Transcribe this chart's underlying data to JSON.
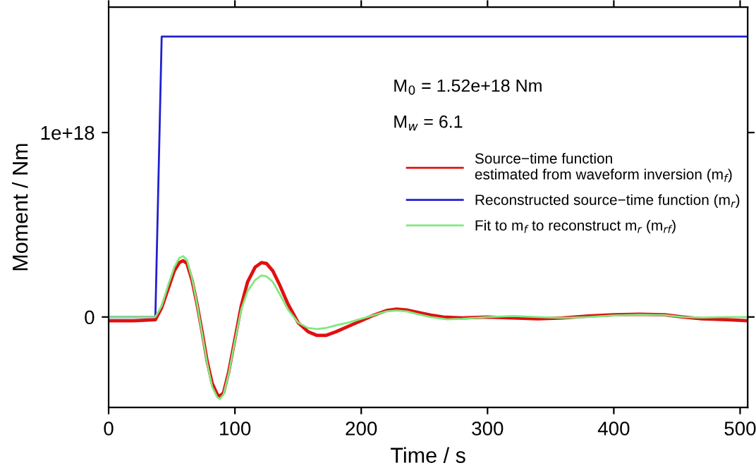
{
  "chart_data": {
    "type": "line",
    "xlabel": "Time / s",
    "ylabel": "Moment / Nm",
    "xlim": [
      0,
      506
    ],
    "ylim": [
      -4.9e+17,
      1.68e+18
    ],
    "xticks": [
      0,
      100,
      200,
      300,
      400,
      500
    ],
    "yticks": [
      0,
      {
        "value": 1e+18,
        "label": "1e+18"
      }
    ],
    "grid": false,
    "legend": "right",
    "marker": "none",
    "line_style": "solid",
    "annotations": [
      "M$_{0}$ = 1.52e+18 Nm",
      "M$_{w}$ = 6.1"
    ],
    "series": [
      {
        "name": "Source−time function\nestimated from waveform inversion (m$_{f}$)",
        "color": "#e01010",
        "x": [
          0,
          20,
          37,
          42,
          47,
          52,
          56,
          59,
          62,
          66,
          70,
          74,
          78,
          82,
          86,
          88,
          91,
          95,
          100,
          105,
          110,
          116,
          121,
          125,
          130,
          135,
          142,
          150,
          158,
          165,
          172,
          180,
          190,
          200,
          210,
          220,
          228,
          236,
          245,
          255,
          265,
          280,
          300,
          320,
          340,
          360,
          380,
          400,
          420,
          440,
          455,
          470,
          490,
          506
        ],
        "values": [
          -2e+16,
          -2e+16,
          -1.5e+16,
          5e+16,
          1.5e+17,
          2.5e+17,
          2.95e+17,
          3.05e+17,
          2.9e+17,
          2e+17,
          7e+16,
          -8e+16,
          -2.4e+17,
          -3.6e+17,
          -4.2e+17,
          -4.3e+17,
          -4.1e+17,
          -3e+17,
          -1.2e+17,
          6e+16,
          1.9e+17,
          2.7e+17,
          2.95e+17,
          2.9e+17,
          2.5e+17,
          1.8e+17,
          7e+16,
          -3e+16,
          -8e+16,
          -1e+17,
          -1e+17,
          -8e+16,
          -5e+16,
          -2e+16,
          1e+16,
          3.5e+16,
          4.3e+16,
          3.8e+16,
          2.5e+16,
          1e+16,
          0,
          -5000000000000000.0,
          0,
          -5000000000000000.0,
          -1e+16,
          -5000000000000000.0,
          5000000000000000.0,
          1.2e+16,
          1.5e+16,
          1.2e+16,
          0,
          -1e+16,
          -1.5e+16,
          -2e+16
        ]
      },
      {
        "name": "Reconstructed source−time function (m$_{r}$)",
        "color": "#2020d0",
        "x": [
          0,
          37,
          42,
          506
        ],
        "values": [
          0,
          0,
          1.52e+18,
          1.52e+18
        ]
      },
      {
        "name": "Fit to m$_{f}$ to reconstruct m$_{r}$ (m$_{rf}$)",
        "color": "#80e880",
        "x": [
          0,
          37,
          42,
          47,
          52,
          56,
          59,
          62,
          66,
          70,
          74,
          78,
          82,
          86,
          88,
          91,
          95,
          100,
          105,
          110,
          116,
          121,
          125,
          130,
          135,
          142,
          150,
          158,
          165,
          172,
          180,
          190,
          200,
          210,
          220,
          228,
          236,
          245,
          255,
          268,
          280,
          300,
          320,
          340,
          360,
          380,
          400,
          420,
          440,
          455,
          470,
          490,
          506
        ],
        "values": [
          0,
          0,
          6e+16,
          1.7e+17,
          2.7e+17,
          3.2e+17,
          3.3e+17,
          3.1e+17,
          2.1e+17,
          7e+16,
          -9e+16,
          -2.5e+17,
          -3.8e+17,
          -4.35e+17,
          -4.45e+17,
          -4.2e+17,
          -3.1e+17,
          -1.3e+17,
          4e+16,
          1.4e+17,
          2e+17,
          2.25e+17,
          2.2e+17,
          1.9e+17,
          1.3e+17,
          4e+16,
          -3e+16,
          -6e+16,
          -6.5e+16,
          -6e+16,
          -4.5e+16,
          -3e+16,
          -1e+16,
          1e+16,
          3e+16,
          3.5e+16,
          3e+16,
          1.5e+16,
          0,
          -1.3e+16,
          -1e+16,
          0,
          5000000000000000.0,
          0,
          -5000000000000000.0,
          0,
          8000000000000000.0,
          1.2e+16,
          1e+16,
          0,
          -3000000000000000.0,
          0,
          0
        ]
      }
    ]
  }
}
